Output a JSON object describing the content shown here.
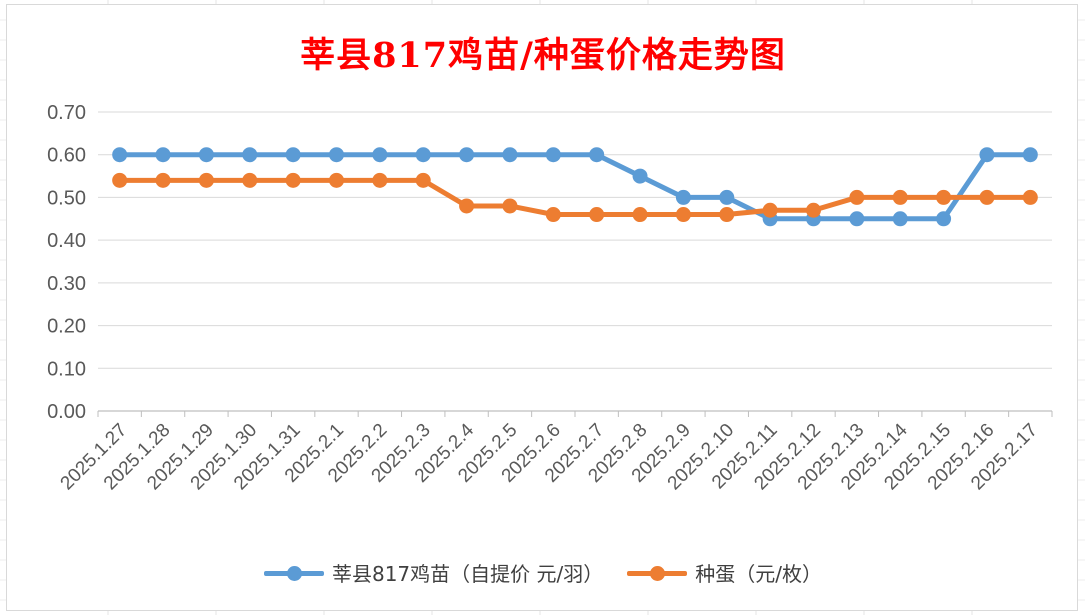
{
  "chart_data": {
    "type": "line",
    "title": "莘县817鸡苗/种蛋价格走势图",
    "categories": [
      "2025.1.27",
      "2025.1.28",
      "2025.1.29",
      "2025.1.30",
      "2025.1.31",
      "2025.2.1",
      "2025.2.2",
      "2025.2.3",
      "2025.2.4",
      "2025.2.5",
      "2025.2.6",
      "2025.2.7",
      "2025.2.8",
      "2025.2.9",
      "2025.2.10",
      "2025.2.11",
      "2025.2.12",
      "2025.2.13",
      "2025.2.14",
      "2025.2.15",
      "2025.2.16",
      "2025.2.17"
    ],
    "series": [
      {
        "name": "莘县817鸡苗（自提价 元/羽）",
        "color": "#5b9bd5",
        "values": [
          0.6,
          0.6,
          0.6,
          0.6,
          0.6,
          0.6,
          0.6,
          0.6,
          0.6,
          0.6,
          0.6,
          0.6,
          0.55,
          0.5,
          0.5,
          0.45,
          0.45,
          0.45,
          0.45,
          0.45,
          0.6,
          0.6
        ]
      },
      {
        "name": "种蛋（元/枚）",
        "color": "#ed7d31",
        "values": [
          0.54,
          0.54,
          0.54,
          0.54,
          0.54,
          0.54,
          0.54,
          0.54,
          0.48,
          0.48,
          0.46,
          0.46,
          0.46,
          0.46,
          0.46,
          0.47,
          0.47,
          0.5,
          0.5,
          0.5,
          0.5,
          0.5
        ]
      }
    ],
    "ylim": [
      0,
      0.7
    ],
    "yticks": [
      "0.00",
      "0.10",
      "0.20",
      "0.30",
      "0.40",
      "0.50",
      "0.60",
      "0.70"
    ],
    "grid": true,
    "legend_position": "bottom",
    "xlabel": "",
    "ylabel": ""
  }
}
